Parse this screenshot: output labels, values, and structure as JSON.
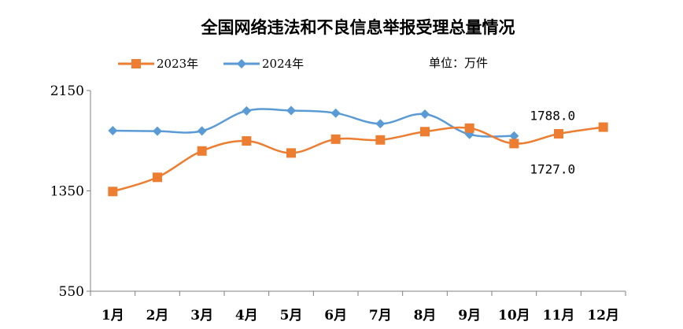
{
  "chart_data": {
    "type": "line",
    "title": "全国网络违法和不良信息举报受理总量情况",
    "unit_label": "单位：万件",
    "categories": [
      "1月",
      "2月",
      "3月",
      "4月",
      "5月",
      "6月",
      "7月",
      "8月",
      "9月",
      "10月",
      "11月",
      "12月"
    ],
    "series": [
      {
        "name": "2023年",
        "color": "#ED7D31",
        "marker": "square",
        "values": [
          1345,
          1458,
          1668,
          1748,
          1652,
          1762,
          1756,
          1822,
          1850,
          1727,
          1805,
          1858
        ]
      },
      {
        "name": "2024年",
        "color": "#5B9BD5",
        "marker": "diamond",
        "values": [
          1830,
          1826,
          1828,
          1988,
          1990,
          1970,
          1885,
          1962,
          1800,
          1788,
          null,
          null
        ]
      }
    ],
    "ylim": [
      550,
      2150
    ],
    "yticks": [
      "550",
      "1350",
      "2150"
    ],
    "annotations": [
      {
        "text": "1788.0",
        "series": 1,
        "index": 9
      },
      {
        "text": "1727.0",
        "series": 0,
        "index": 9
      }
    ],
    "legend_position": "top-left",
    "grid": false
  }
}
